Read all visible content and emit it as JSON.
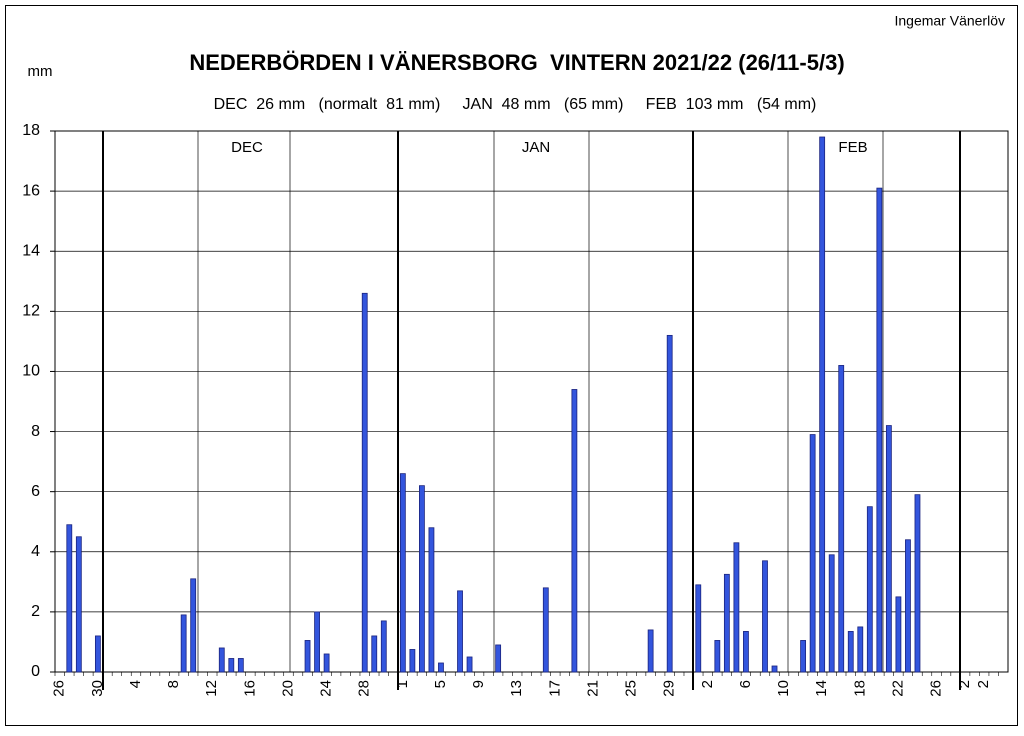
{
  "chart_data": {
    "type": "bar",
    "title": "NEDERBÖRDEN I VÄNERSBORG  VINTERN 2021/22 (26/11-5/3)",
    "subtitle": "DEC  26 mm   (normalt  81 mm)     JAN  48 mm   (65 mm)     FEB  103 mm   (54 mm)",
    "y_label": "mm",
    "author": "Ingemar Vänerlöv",
    "months": [
      "DEC",
      "JAN",
      "FEB"
    ],
    "color": "#3355dd",
    "categories": [
      "26",
      null,
      null,
      null,
      "30",
      null,
      null,
      null,
      "4",
      null,
      null,
      null,
      "8",
      null,
      null,
      null,
      "12",
      null,
      null,
      null,
      "16",
      null,
      null,
      null,
      "20",
      null,
      null,
      null,
      "24",
      null,
      null,
      null,
      "28",
      null,
      null,
      null,
      "1",
      null,
      null,
      null,
      "5",
      null,
      null,
      null,
      "9",
      null,
      null,
      null,
      "13",
      null,
      null,
      null,
      "17",
      null,
      null,
      null,
      "21",
      null,
      null,
      null,
      "25",
      null,
      null,
      null,
      "29",
      null,
      null,
      null,
      "2",
      null,
      null,
      null,
      "6",
      null,
      null,
      null,
      "10",
      null,
      null,
      null,
      "14",
      null,
      null,
      null,
      "18",
      null,
      null,
      null,
      "22",
      null,
      null,
      null,
      "26",
      null,
      null,
      "2",
      null,
      "2",
      null,
      null
    ],
    "values": [
      0,
      4.9,
      4.5,
      0,
      1.2,
      0,
      0,
      0,
      0,
      0,
      0,
      0,
      0,
      1.9,
      3.1,
      0,
      0,
      0.8,
      0.45,
      0.45,
      0,
      0,
      0,
      0,
      0,
      0,
      1.05,
      2.0,
      0.6,
      0,
      0,
      0,
      12.6,
      1.2,
      1.7,
      0,
      6.6,
      0.75,
      6.2,
      4.8,
      0.3,
      0,
      2.7,
      0.5,
      0,
      0,
      0.9,
      0,
      0,
      0,
      0,
      2.8,
      0,
      0,
      9.4,
      0,
      0,
      0,
      0,
      0,
      0,
      0,
      1.4,
      0,
      11.2,
      0,
      0,
      2.9,
      0,
      1.05,
      3.25,
      4.3,
      1.35,
      0,
      3.7,
      0.2,
      0,
      0,
      1.05,
      7.9,
      17.8,
      3.9,
      10.2,
      1.35,
      1.5,
      5.5,
      16.1,
      8.2,
      2.5,
      4.4,
      5.9,
      0,
      0,
      0,
      0,
      0,
      0,
      0,
      0,
      0
    ],
    "ylim": [
      0,
      18
    ],
    "yticks": [
      0,
      2,
      4,
      6,
      8,
      10,
      12,
      14,
      16,
      18
    ],
    "grid": true
  }
}
